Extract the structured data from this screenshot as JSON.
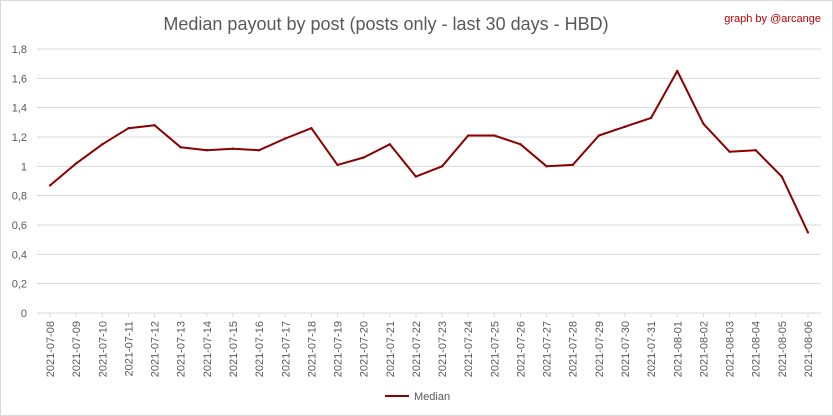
{
  "credit": "graph by @arcange",
  "colors": {
    "series": "#8b0000",
    "grid": "#d9d9d9",
    "text": "#595959",
    "credit": "#c00000"
  },
  "chart_data": {
    "type": "line",
    "title": "Median payout by post (posts only - last 30 days - HBD)",
    "xlabel": "",
    "ylabel": "",
    "ylim": [
      0,
      1.8
    ],
    "yticks": [
      "0",
      "0,2",
      "0,4",
      "0,6",
      "0,8",
      "1",
      "1,2",
      "1,4",
      "1,6",
      "1,8"
    ],
    "grid": true,
    "legend_position": "bottom",
    "categories": [
      "2021-07-08",
      "2021-07-09",
      "2021-07-10",
      "2021-07-11",
      "2021-07-12",
      "2021-07-13",
      "2021-07-14",
      "2021-07-15",
      "2021-07-16",
      "2021-07-17",
      "2021-07-18",
      "2021-07-19",
      "2021-07-20",
      "2021-07-21",
      "2021-07-22",
      "2021-07-23",
      "2021-07-24",
      "2021-07-25",
      "2021-07-26",
      "2021-07-27",
      "2021-07-28",
      "2021-07-29",
      "2021-07-30",
      "2021-07-31",
      "2021-08-01",
      "2021-08-02",
      "2021-08-03",
      "2021-08-04",
      "2021-08-05",
      "2021-08-06"
    ],
    "series": [
      {
        "name": "Median",
        "values": [
          0.87,
          1.02,
          1.15,
          1.26,
          1.28,
          1.13,
          1.11,
          1.12,
          1.11,
          1.19,
          1.26,
          1.01,
          1.06,
          1.15,
          0.93,
          1.0,
          1.21,
          1.21,
          1.15,
          1.0,
          1.01,
          1.21,
          1.27,
          1.33,
          1.65,
          1.29,
          1.1,
          1.11,
          0.93,
          0.55
        ]
      }
    ]
  }
}
